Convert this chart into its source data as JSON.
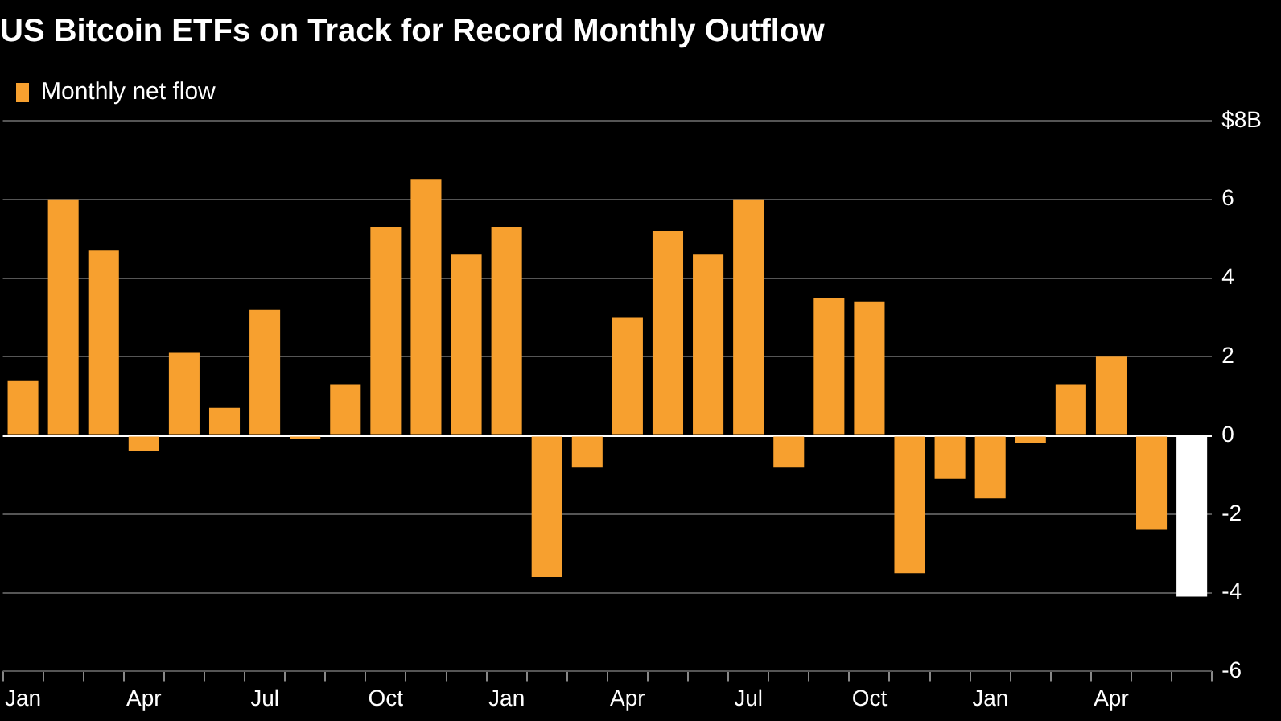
{
  "chart_data": {
    "type": "bar",
    "title": "US Bitcoin ETFs on Track for Record Monthly Outflow",
    "categories": [
      "Jan",
      null,
      null,
      "Apr",
      null,
      null,
      "Jul",
      null,
      null,
      "Oct",
      null,
      null,
      "Jan",
      null,
      null,
      "Apr",
      null,
      null,
      "Jul",
      null,
      null,
      "Oct",
      null,
      null,
      "Jan",
      null,
      null,
      "Apr",
      null,
      null
    ],
    "series": [
      {
        "name": "Monthly net flow",
        "color": "#f7a02f",
        "colors": [
          "#f7a02f",
          "#f7a02f",
          "#f7a02f",
          "#f7a02f",
          "#f7a02f",
          "#f7a02f",
          "#f7a02f",
          "#f7a02f",
          "#f7a02f",
          "#f7a02f",
          "#f7a02f",
          "#f7a02f",
          "#f7a02f",
          "#f7a02f",
          "#f7a02f",
          "#f7a02f",
          "#f7a02f",
          "#f7a02f",
          "#f7a02f",
          "#f7a02f",
          "#f7a02f",
          "#f7a02f",
          "#f7a02f",
          "#f7a02f",
          "#f7a02f",
          "#f7a02f",
          "#f7a02f",
          "#f7a02f",
          "#f7a02f",
          "#ffffff"
        ],
        "values": [
          1.4,
          6.0,
          4.7,
          -0.4,
          2.1,
          0.7,
          3.2,
          -0.1,
          1.3,
          5.3,
          6.5,
          4.6,
          5.3,
          -3.6,
          -0.8,
          3.0,
          5.2,
          4.6,
          6.0,
          -0.8,
          3.5,
          3.4,
          -3.5,
          -1.1,
          -1.6,
          -0.2,
          1.3,
          2.0,
          -2.4,
          -4.1
        ]
      }
    ],
    "ylim": [
      -6,
      8
    ],
    "yticks": [
      -6,
      -4,
      -2,
      0,
      2,
      4,
      6,
      {
        "value": 8,
        "label": "$8B"
      }
    ],
    "grid": "y",
    "legend": "top left"
  }
}
